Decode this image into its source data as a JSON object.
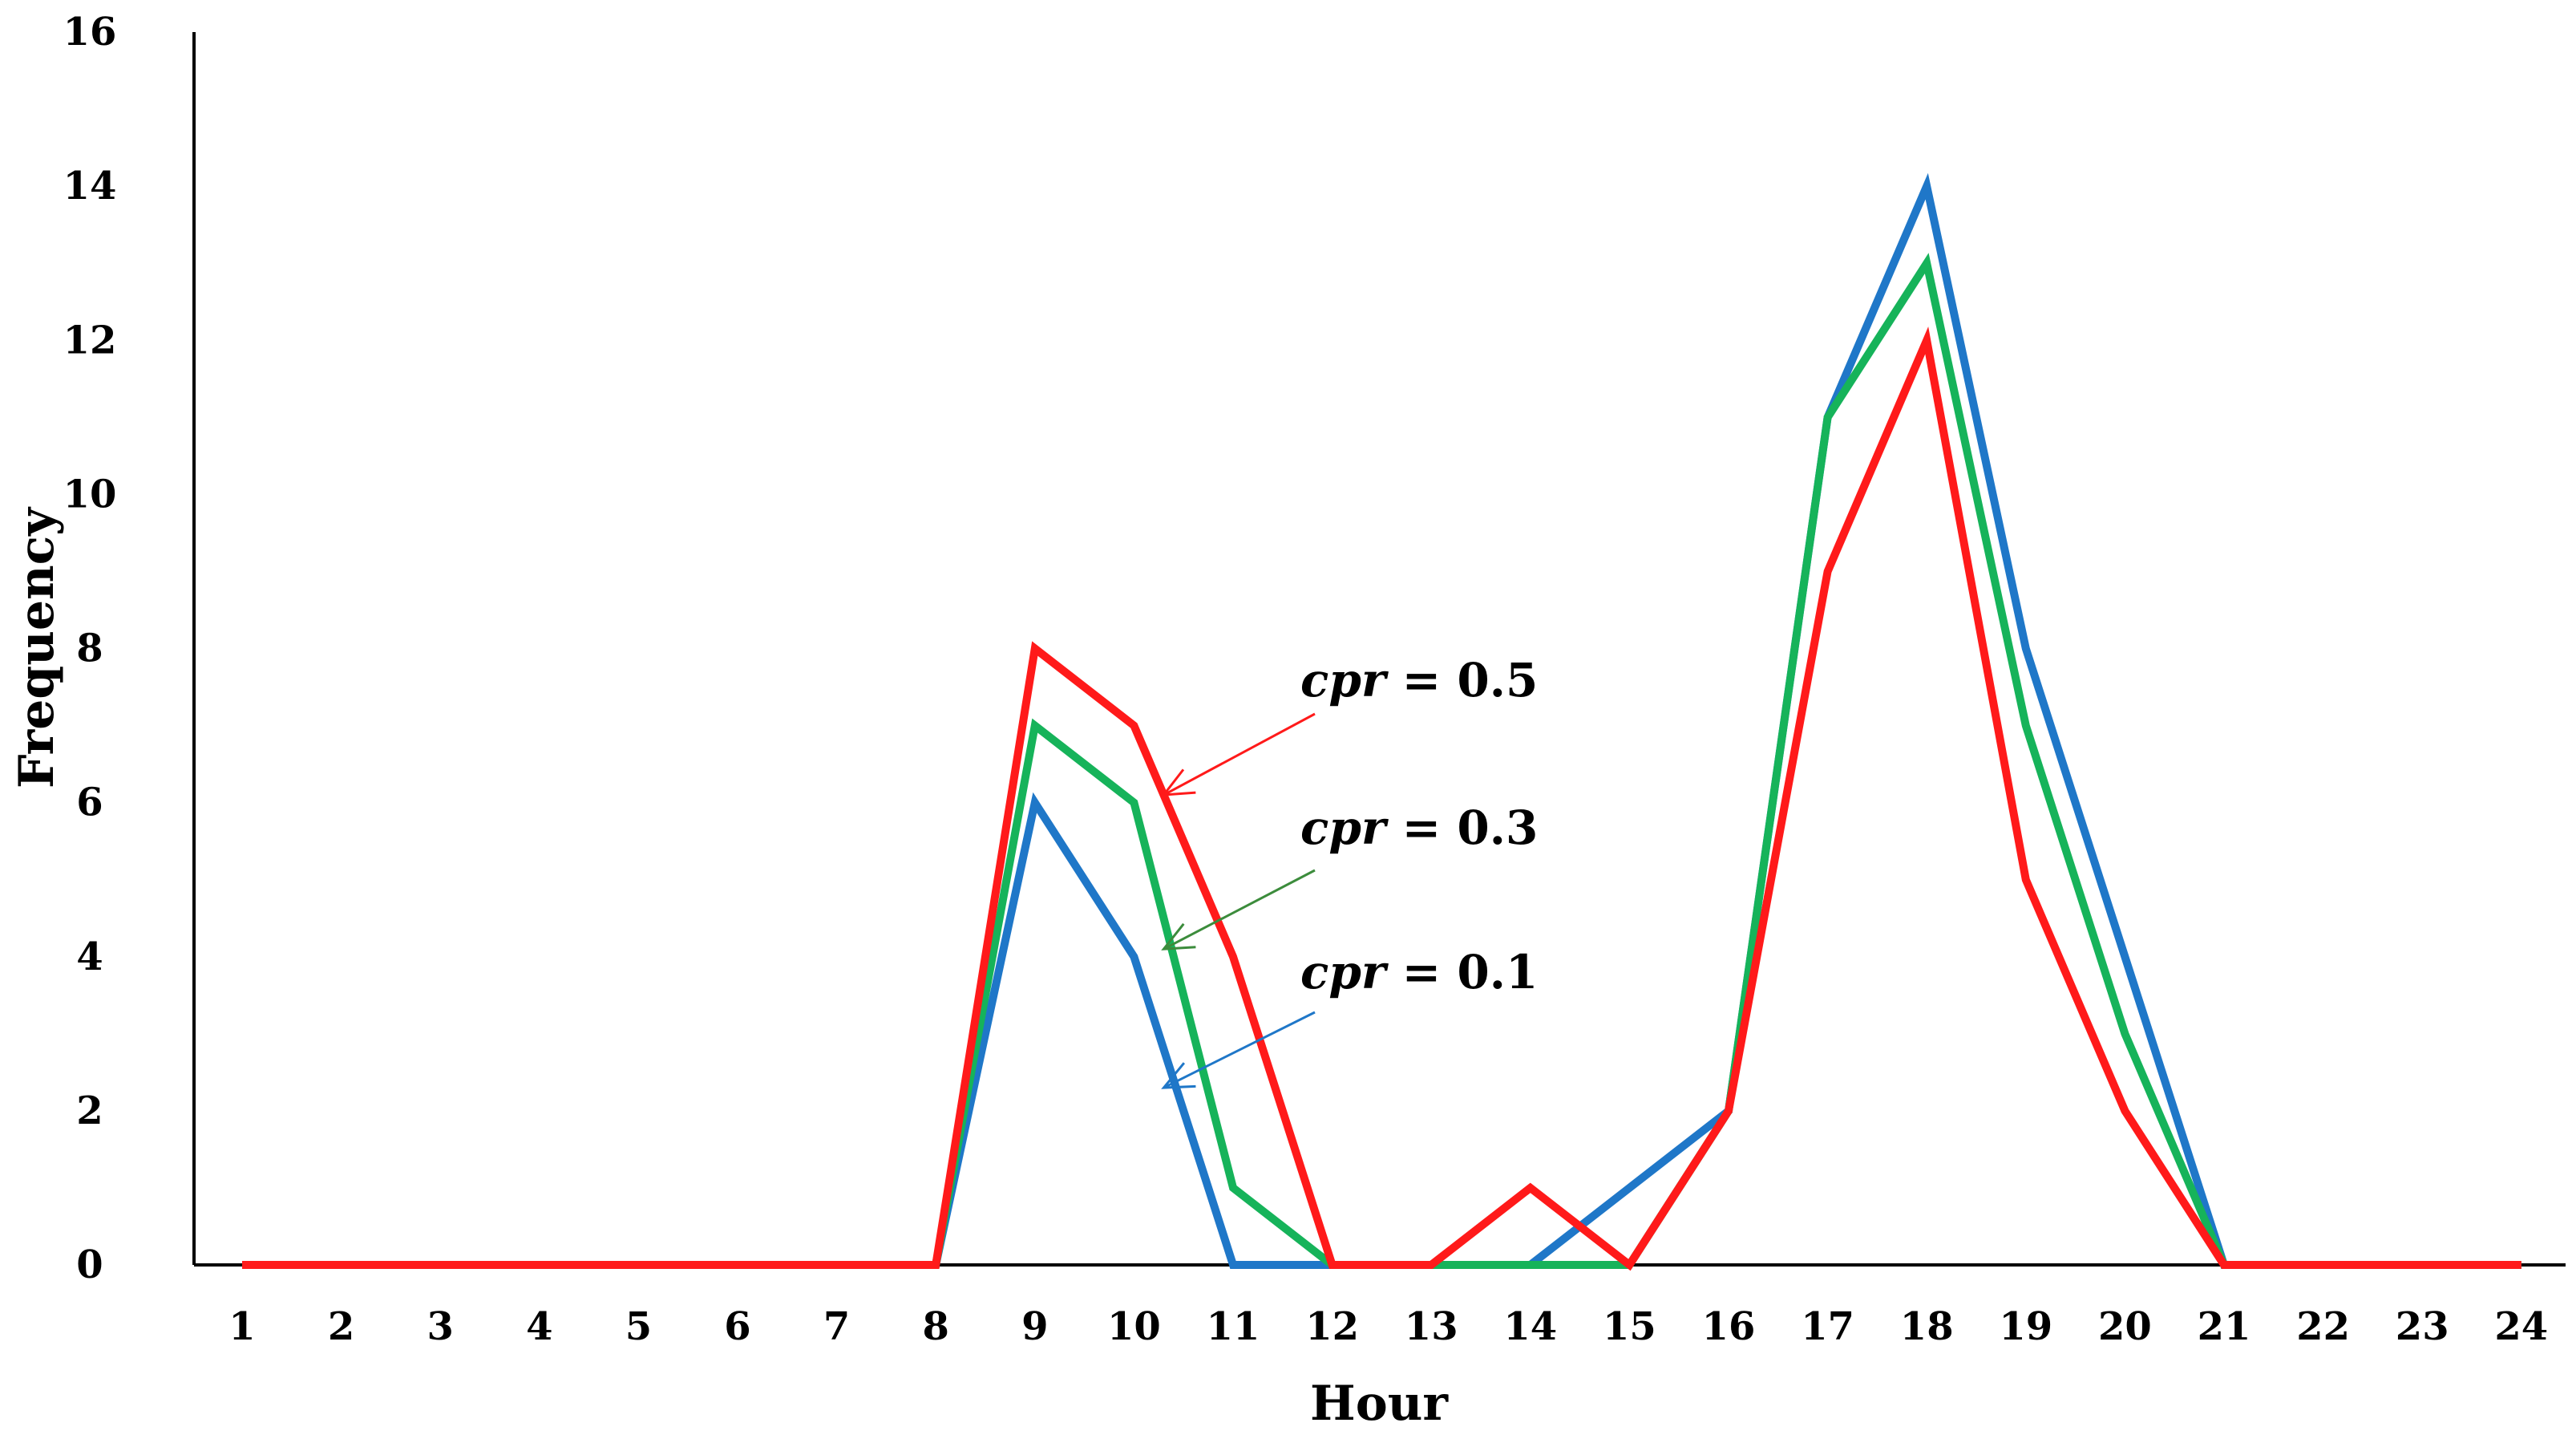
{
  "chart_data": {
    "type": "line",
    "title": "",
    "xlabel": "Hour",
    "ylabel": "Frequency",
    "categories": [
      "1",
      "2",
      "3",
      "4",
      "5",
      "6",
      "7",
      "8",
      "9",
      "10",
      "11",
      "12",
      "13",
      "14",
      "15",
      "16",
      "17",
      "18",
      "19",
      "20",
      "21",
      "22",
      "23",
      "24"
    ],
    "x": [
      1,
      2,
      3,
      4,
      5,
      6,
      7,
      8,
      9,
      10,
      11,
      12,
      13,
      14,
      15,
      16,
      17,
      18,
      19,
      20,
      21,
      22,
      23,
      24
    ],
    "ylim": [
      0,
      16
    ],
    "yticks": [
      0,
      2,
      4,
      6,
      8,
      10,
      12,
      14,
      16
    ],
    "grid": false,
    "legend": "none",
    "series": [
      {
        "color": "#1f77c8",
        "values": [
          0,
          0,
          0,
          0,
          0,
          0,
          0,
          0,
          6,
          4,
          0,
          0,
          0,
          0,
          1,
          2,
          11,
          14,
          8,
          4,
          0,
          0,
          0,
          0
        ]
      },
      {
        "color": "#16b35a",
        "values": [
          0,
          0,
          0,
          0,
          0,
          0,
          0,
          0,
          7,
          6,
          1,
          0,
          0,
          0,
          0,
          2,
          11,
          13,
          7,
          3,
          0,
          0,
          0,
          0
        ]
      },
      {
        "color": "#ff1a1a",
        "values": [
          0,
          0,
          0,
          0,
          0,
          0,
          0,
          0,
          8,
          7,
          4,
          0,
          0,
          1,
          0,
          2,
          9,
          12,
          5,
          2,
          0,
          0,
          0,
          0
        ]
      }
    ],
    "annotations": [
      {
        "math": "cpr",
        "eq": " = ",
        "value": "0.5",
        "color": "#ff1a1a",
        "target_x": 10.3,
        "target_y": 6.1
      },
      {
        "math": "cpr",
        "eq": " = ",
        "value": "0.3",
        "color": "#3c8c3c",
        "target_x": 10.3,
        "target_y": 4.1
      },
      {
        "math": "cpr",
        "eq": " = ",
        "value": "0.1",
        "color": "#1f77c8",
        "target_x": 10.3,
        "target_y": 2.3
      }
    ]
  }
}
